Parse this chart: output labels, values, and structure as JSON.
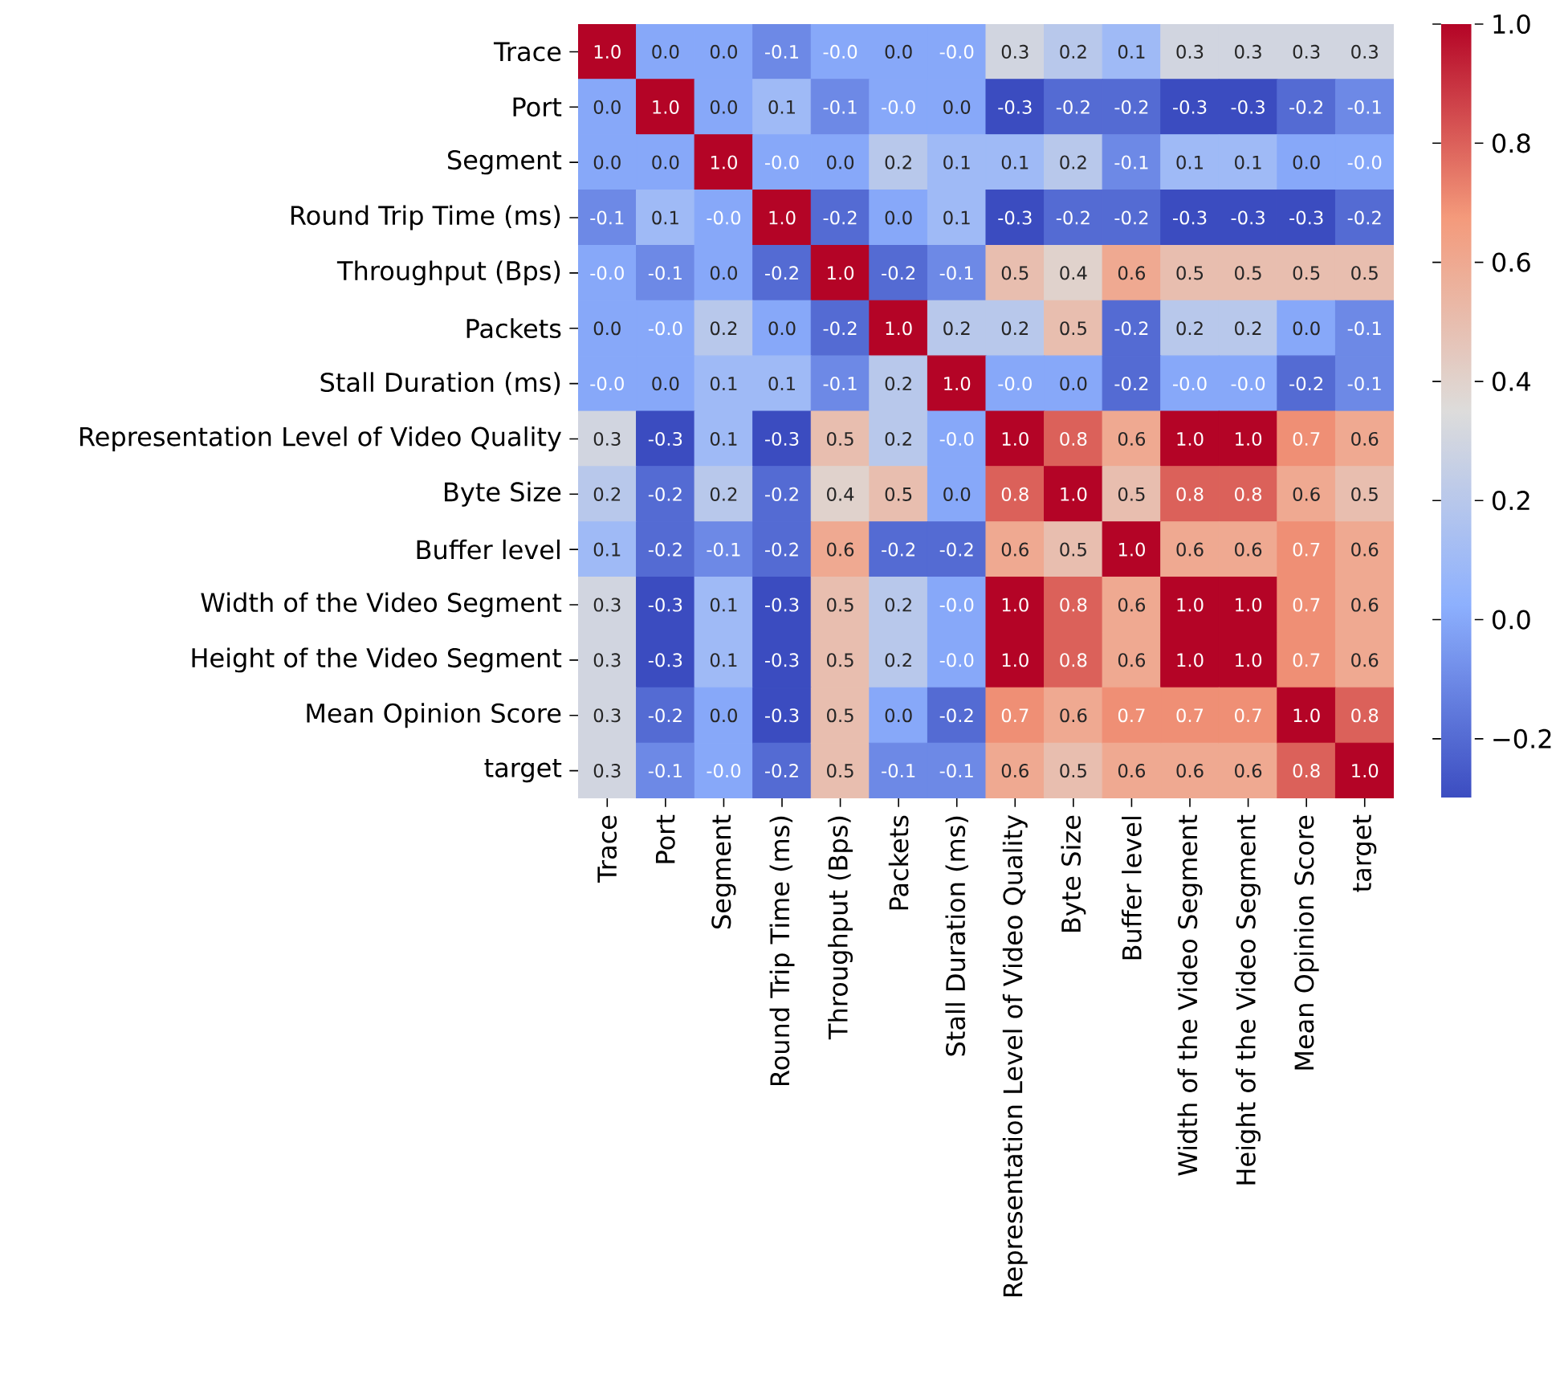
{
  "chart_data": {
    "type": "heatmap",
    "categories": [
      "Trace",
      "Port",
      "Segment",
      "Round Trip Time (ms)",
      "Throughput (Bps)",
      "Packets",
      "Stall Duration (ms)",
      "Representation Level of Video Quality",
      "Byte Size",
      "Buffer level",
      "Width of the Video Segment",
      "Height of the Video Segment",
      "Mean Opinion Score",
      "target"
    ],
    "y_categories": [
      "Trace",
      "Port",
      "Segment",
      "Round Trip Time (ms)",
      "Throughput (Bps)",
      "Packets",
      "Stall Duration (ms)",
      "Representation Level of Video Quality",
      "Byte Size",
      "Buffer level",
      "Width of the Video Segment",
      "Height of the Video Segment",
      "Mean Opinion Score",
      "target"
    ],
    "cells": [
      [
        1.0,
        0.0,
        0.0,
        -0.1,
        -0.0,
        0.0,
        -0.0,
        0.3,
        0.2,
        0.1,
        0.3,
        0.3,
        0.3,
        0.3
      ],
      [
        0.0,
        1.0,
        0.0,
        0.1,
        -0.1,
        -0.0,
        0.0,
        -0.3,
        -0.2,
        -0.2,
        -0.3,
        -0.3,
        -0.2,
        -0.1
      ],
      [
        0.0,
        0.0,
        1.0,
        -0.0,
        0.0,
        0.2,
        0.1,
        0.1,
        0.2,
        -0.1,
        0.1,
        0.1,
        0.0,
        -0.0
      ],
      [
        -0.1,
        0.1,
        -0.0,
        1.0,
        -0.2,
        0.0,
        0.1,
        -0.3,
        -0.2,
        -0.2,
        -0.3,
        -0.3,
        -0.3,
        -0.2
      ],
      [
        -0.0,
        -0.1,
        0.0,
        -0.2,
        1.0,
        -0.2,
        -0.1,
        0.5,
        0.4,
        0.6,
        0.5,
        0.5,
        0.5,
        0.5
      ],
      [
        0.0,
        -0.0,
        0.2,
        0.0,
        -0.2,
        1.0,
        0.2,
        0.2,
        0.5,
        -0.2,
        0.2,
        0.2,
        0.0,
        -0.1
      ],
      [
        -0.0,
        0.0,
        0.1,
        0.1,
        -0.1,
        0.2,
        1.0,
        -0.0,
        0.0,
        -0.2,
        -0.0,
        -0.0,
        -0.2,
        -0.1
      ],
      [
        0.3,
        -0.3,
        0.1,
        -0.3,
        0.5,
        0.2,
        -0.0,
        1.0,
        0.8,
        0.6,
        1.0,
        1.0,
        0.7,
        0.6
      ],
      [
        0.2,
        -0.2,
        0.2,
        -0.2,
        0.4,
        0.5,
        0.0,
        0.8,
        1.0,
        0.5,
        0.8,
        0.8,
        0.6,
        0.5
      ],
      [
        0.1,
        -0.2,
        -0.1,
        -0.2,
        0.6,
        -0.2,
        -0.2,
        0.6,
        0.5,
        1.0,
        0.6,
        0.6,
        0.7,
        0.6
      ],
      [
        0.3,
        -0.3,
        0.1,
        -0.3,
        0.5,
        0.2,
        -0.0,
        1.0,
        0.8,
        0.6,
        1.0,
        1.0,
        0.7,
        0.6
      ],
      [
        0.3,
        -0.3,
        0.1,
        -0.3,
        0.5,
        0.2,
        -0.0,
        1.0,
        0.8,
        0.6,
        1.0,
        1.0,
        0.7,
        0.6
      ],
      [
        0.3,
        -0.2,
        0.0,
        -0.3,
        0.5,
        0.0,
        -0.2,
        0.7,
        0.6,
        0.7,
        0.7,
        0.7,
        1.0,
        0.8
      ],
      [
        0.3,
        -0.1,
        -0.0,
        -0.2,
        0.5,
        -0.1,
        -0.1,
        0.6,
        0.5,
        0.6,
        0.6,
        0.6,
        0.8,
        1.0
      ]
    ],
    "cell_labels": [
      [
        "1.0",
        "0.0",
        "0.0",
        "-0.1",
        "-0.0",
        "0.0",
        "-0.0",
        "0.3",
        "0.2",
        "0.1",
        "0.3",
        "0.3",
        "0.3",
        "0.3"
      ],
      [
        "0.0",
        "1.0",
        "0.0",
        "0.1",
        "-0.1",
        "-0.0",
        "0.0",
        "-0.3",
        "-0.2",
        "-0.2",
        "-0.3",
        "-0.3",
        "-0.2",
        "-0.1"
      ],
      [
        "0.0",
        "0.0",
        "1.0",
        "-0.0",
        "0.0",
        "0.2",
        "0.1",
        "0.1",
        "0.2",
        "-0.1",
        "0.1",
        "0.1",
        "0.0",
        "-0.0"
      ],
      [
        "-0.1",
        "0.1",
        "-0.0",
        "1.0",
        "-0.2",
        "0.0",
        "0.1",
        "-0.3",
        "-0.2",
        "-0.2",
        "-0.3",
        "-0.3",
        "-0.3",
        "-0.2"
      ],
      [
        "-0.0",
        "-0.1",
        "0.0",
        "-0.2",
        "1.0",
        "-0.2",
        "-0.1",
        "0.5",
        "0.4",
        "0.6",
        "0.5",
        "0.5",
        "0.5",
        "0.5"
      ],
      [
        "0.0",
        "-0.0",
        "0.2",
        "0.0",
        "-0.2",
        "1.0",
        "0.2",
        "0.2",
        "0.5",
        "-0.2",
        "0.2",
        "0.2",
        "0.0",
        "-0.1"
      ],
      [
        "-0.0",
        "0.0",
        "0.1",
        "0.1",
        "-0.1",
        "0.2",
        "1.0",
        "-0.0",
        "0.0",
        "-0.2",
        "-0.0",
        "-0.0",
        "-0.2",
        "-0.1"
      ],
      [
        "0.3",
        "-0.3",
        "0.1",
        "-0.3",
        "0.5",
        "0.2",
        "-0.0",
        "1.0",
        "0.8",
        "0.6",
        "1.0",
        "1.0",
        "0.7",
        "0.6"
      ],
      [
        "0.2",
        "-0.2",
        "0.2",
        "-0.2",
        "0.4",
        "0.5",
        "0.0",
        "0.8",
        "1.0",
        "0.5",
        "0.8",
        "0.8",
        "0.6",
        "0.5"
      ],
      [
        "0.1",
        "-0.2",
        "-0.1",
        "-0.2",
        "0.6",
        "-0.2",
        "-0.2",
        "0.6",
        "0.5",
        "1.0",
        "0.6",
        "0.6",
        "0.7",
        "0.6"
      ],
      [
        "0.3",
        "-0.3",
        "0.1",
        "-0.3",
        "0.5",
        "0.2",
        "-0.0",
        "1.0",
        "0.8",
        "0.6",
        "1.0",
        "1.0",
        "0.7",
        "0.6"
      ],
      [
        "0.3",
        "-0.3",
        "0.1",
        "-0.3",
        "0.5",
        "0.2",
        "-0.0",
        "1.0",
        "0.8",
        "0.6",
        "1.0",
        "1.0",
        "0.7",
        "0.6"
      ],
      [
        "0.3",
        "-0.2",
        "0.0",
        "-0.3",
        "0.5",
        "0.0",
        "-0.2",
        "0.7",
        "0.6",
        "0.7",
        "0.7",
        "0.7",
        "1.0",
        "0.8"
      ],
      [
        "0.3",
        "-0.1",
        "-0.0",
        "-0.2",
        "0.5",
        "-0.1",
        "-0.1",
        "0.6",
        "0.5",
        "0.6",
        "0.6",
        "0.6",
        "0.8",
        "1.0"
      ]
    ],
    "clim": [
      -0.3,
      1.0
    ],
    "cticks": [
      {
        "value": -0.2,
        "label": "−0.2"
      },
      {
        "value": 0.0,
        "label": "0.0"
      },
      {
        "value": 0.2,
        "label": "0.2"
      },
      {
        "value": 0.4,
        "label": "0.4"
      },
      {
        "value": 0.6,
        "label": "0.6"
      },
      {
        "value": 0.8,
        "label": "0.8"
      },
      {
        "value": 1.0,
        "label": "1.0"
      }
    ]
  }
}
